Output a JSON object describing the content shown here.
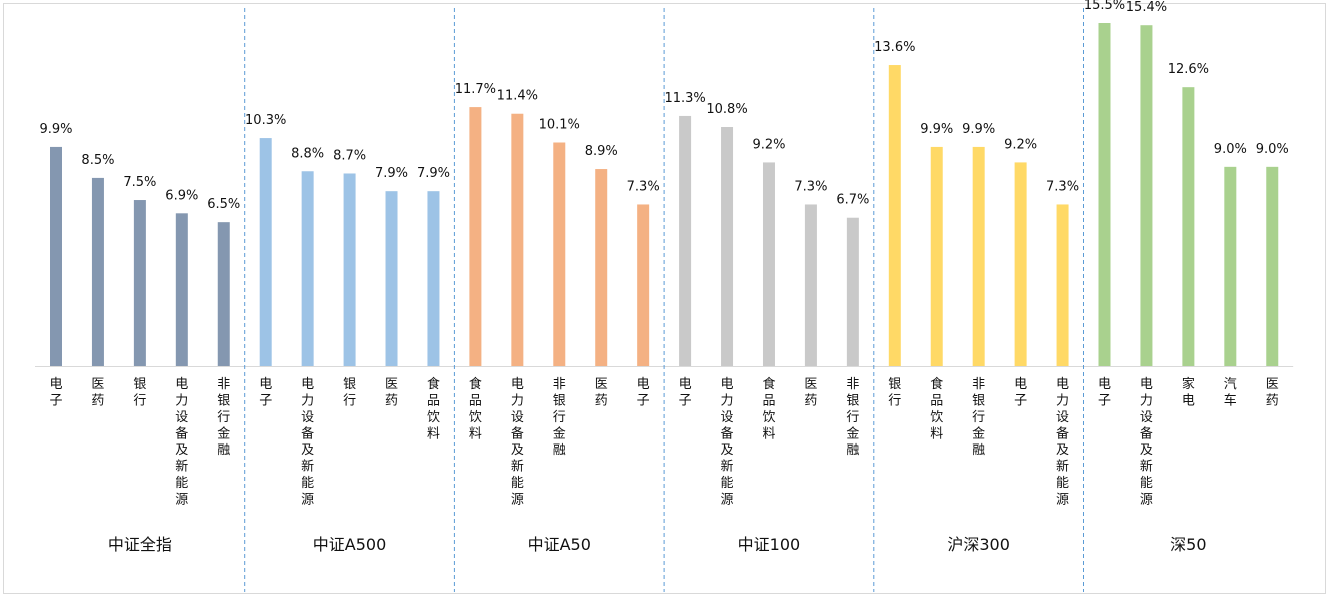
{
  "chart_data": {
    "type": "bar",
    "title": "",
    "xlabel": "",
    "ylabel": "",
    "ylim": [
      0,
      15.5
    ],
    "grid": false,
    "legend": "none",
    "groups": [
      {
        "name": "中证全指",
        "color": "#8497B0",
        "categories": [
          "电子",
          "医药",
          "银行",
          "电力设备及新能源",
          "非银行金融"
        ],
        "values": [
          9.9,
          8.5,
          7.5,
          6.9,
          6.5
        ],
        "labels": [
          "9.9%",
          "8.5%",
          "7.5%",
          "6.9%",
          "6.5%"
        ]
      },
      {
        "name": "中证A500",
        "color": "#9DC3E6",
        "categories": [
          "电子",
          "电力设备及新能源",
          "银行",
          "医药",
          "食品饮料"
        ],
        "values": [
          10.3,
          8.8,
          8.7,
          7.9,
          7.9
        ],
        "labels": [
          "10.3%",
          "8.8%",
          "8.7%",
          "7.9%",
          "7.9%"
        ]
      },
      {
        "name": "中证A50",
        "color": "#F4B183",
        "categories": [
          "食品饮料",
          "电力设备及新能源",
          "非银行金融",
          "医药",
          "电子"
        ],
        "values": [
          11.7,
          11.4,
          10.1,
          8.9,
          7.3
        ],
        "labels": [
          "11.7%",
          "11.4%",
          "10.1%",
          "8.9%",
          "7.3%"
        ]
      },
      {
        "name": "中证100",
        "color": "#C9C9C9",
        "categories": [
          "电子",
          "电力设备及新能源",
          "食品饮料",
          "医药",
          "非银行金融"
        ],
        "values": [
          11.3,
          10.8,
          9.2,
          7.3,
          6.7
        ],
        "labels": [
          "11.3%",
          "10.8%",
          "9.2%",
          "7.3%",
          "6.7%"
        ]
      },
      {
        "name": "沪深300",
        "color": "#FFD966",
        "categories": [
          "银行",
          "食品饮料",
          "非银行金融",
          "电子",
          "电力设备及新能源"
        ],
        "values": [
          13.6,
          9.9,
          9.9,
          9.2,
          7.3
        ],
        "labels": [
          "13.6%",
          "9.9%",
          "9.9%",
          "9.2%",
          "7.3%"
        ]
      },
      {
        "name": "深50",
        "color": "#A9D18E",
        "categories": [
          "电子",
          "电力设备及新能源",
          "家电",
          "汽车",
          "医药"
        ],
        "values": [
          15.5,
          15.4,
          12.6,
          9.0,
          9.0
        ],
        "labels": [
          "15.5%",
          "15.4%",
          "12.6%",
          "9.0%",
          "9.0%"
        ]
      }
    ]
  }
}
